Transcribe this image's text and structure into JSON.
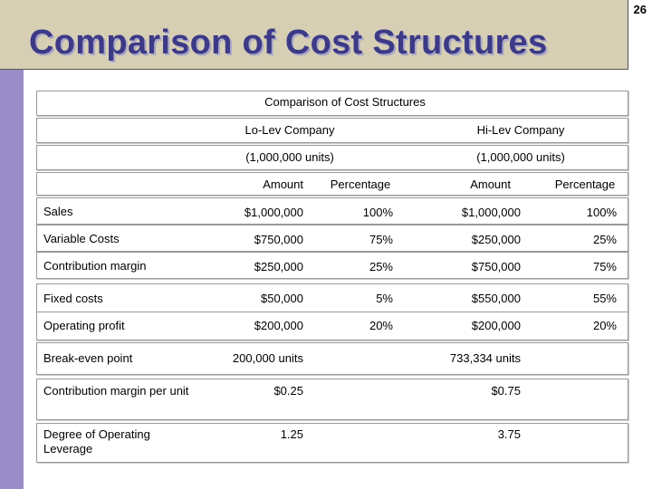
{
  "slide": {
    "number": "26",
    "title": "Comparison of Cost Structures"
  },
  "table": {
    "caption": "Comparison of Cost Structures",
    "companies": [
      {
        "name": "Lo-Lev Company",
        "units": "(1,000,000 units)"
      },
      {
        "name": "Hi-Lev Company",
        "units": "(1,000,000 units)"
      }
    ],
    "col_headers": {
      "amount": "Amount",
      "percentage": "Percentage"
    },
    "rows": [
      {
        "label": "Sales",
        "lo_amount": "$1,000,000",
        "lo_pct": "100%",
        "hi_amount": "$1,000,000",
        "hi_pct": "100%"
      },
      {
        "label": "Variable Costs",
        "lo_amount": "$750,000",
        "lo_pct": "75%",
        "hi_amount": "$250,000",
        "hi_pct": "25%"
      },
      {
        "label": "Contribution margin",
        "lo_amount": "$250,000",
        "lo_pct": "25%",
        "hi_amount": "$750,000",
        "hi_pct": "75%"
      },
      {
        "label": "Fixed costs",
        "lo_amount": "$50,000",
        "lo_pct": "5%",
        "hi_amount": "$550,000",
        "hi_pct": "55%"
      },
      {
        "label": "Operating profit",
        "lo_amount": "$200,000",
        "lo_pct": "20%",
        "hi_amount": "$200,000",
        "hi_pct": "20%"
      }
    ],
    "extra_rows": [
      {
        "label": "Break-even point",
        "lo": "200,000 units",
        "hi": "733,334 units"
      },
      {
        "label": "Contribution margin per unit",
        "lo": "$0.25",
        "hi": "$0.75"
      },
      {
        "label": "Degree of Operating Leverage",
        "lo": "1.25",
        "hi": "3.75"
      }
    ]
  }
}
